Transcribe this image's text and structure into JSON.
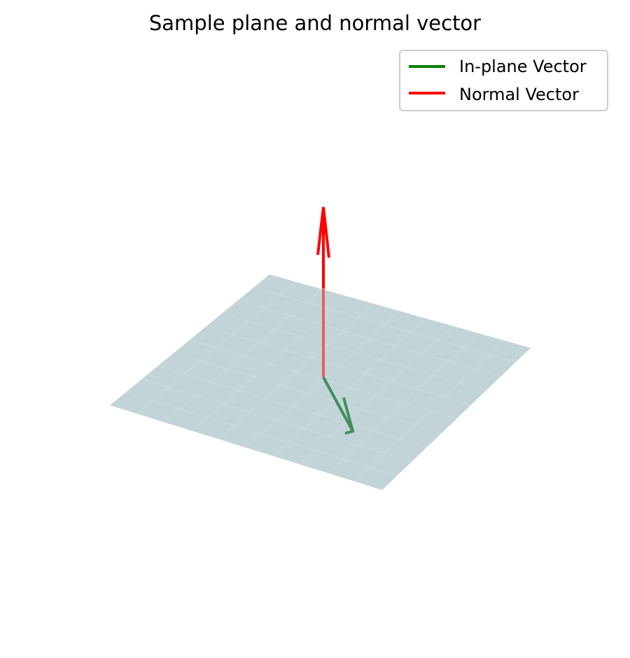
{
  "chart_data": {
    "type": "3d-vector-plot",
    "title": "Sample plane and normal vector",
    "axes_visible": false,
    "grid": false,
    "legend_placement": "top-right",
    "plane": {
      "description_points": [
        [
          -1,
          -1,
          0
        ],
        [
          1,
          -1,
          0
        ],
        [
          1,
          1,
          0
        ],
        [
          -1,
          1,
          0
        ]
      ],
      "color": "#c3d4d9"
    },
    "origin": [
      0,
      0,
      0
    ],
    "series": [
      {
        "name": "In-plane Vector",
        "vector": [
          0.3,
          -0.3,
          0
        ],
        "color": "#008000",
        "draw_color": "#3e8f5a"
      },
      {
        "name": "Normal Vector",
        "vector": [
          0,
          0,
          1
        ],
        "color": "#ff0000",
        "draw_color": "#ff0000"
      }
    ]
  }
}
